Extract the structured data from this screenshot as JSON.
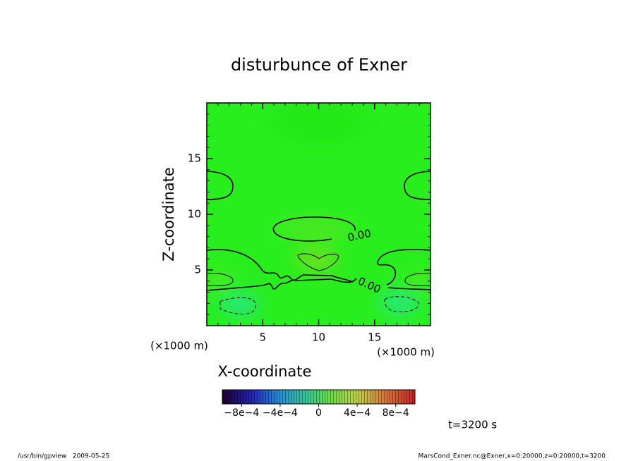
{
  "chart_data": {
    "type": "contour",
    "title": "disturbunce of Exner",
    "xlabel": "X-coordinate",
    "ylabel": "Z-coordinate",
    "xunit": "(×1000 m)",
    "yunit": "(×1000 m)",
    "xlim": [
      0,
      20
    ],
    "xticks": [
      5,
      10,
      15
    ],
    "ylim": [
      0,
      20
    ],
    "yticks": [
      5,
      10,
      15
    ],
    "contour_level": 0,
    "contour_label": "0.00",
    "colorbar": {
      "clim": [
        -0.001,
        0.001
      ],
      "ticks": [
        {
          "value": -0.0008,
          "label": "−8e−4"
        },
        {
          "value": -0.0004,
          "label": "−4e−4"
        },
        0,
        {
          "value": 0.0004,
          "label": "4e−4"
        },
        {
          "value": 0.0008,
          "label": "8e−4"
        }
      ]
    },
    "time_label": "t=3200 s",
    "footer_left": "/usr/bin/gpview   2009-05-25",
    "footer_right": "MarsCond_Exner.nc@Exner,x=0:20000,z=0:20000,t=3200"
  }
}
